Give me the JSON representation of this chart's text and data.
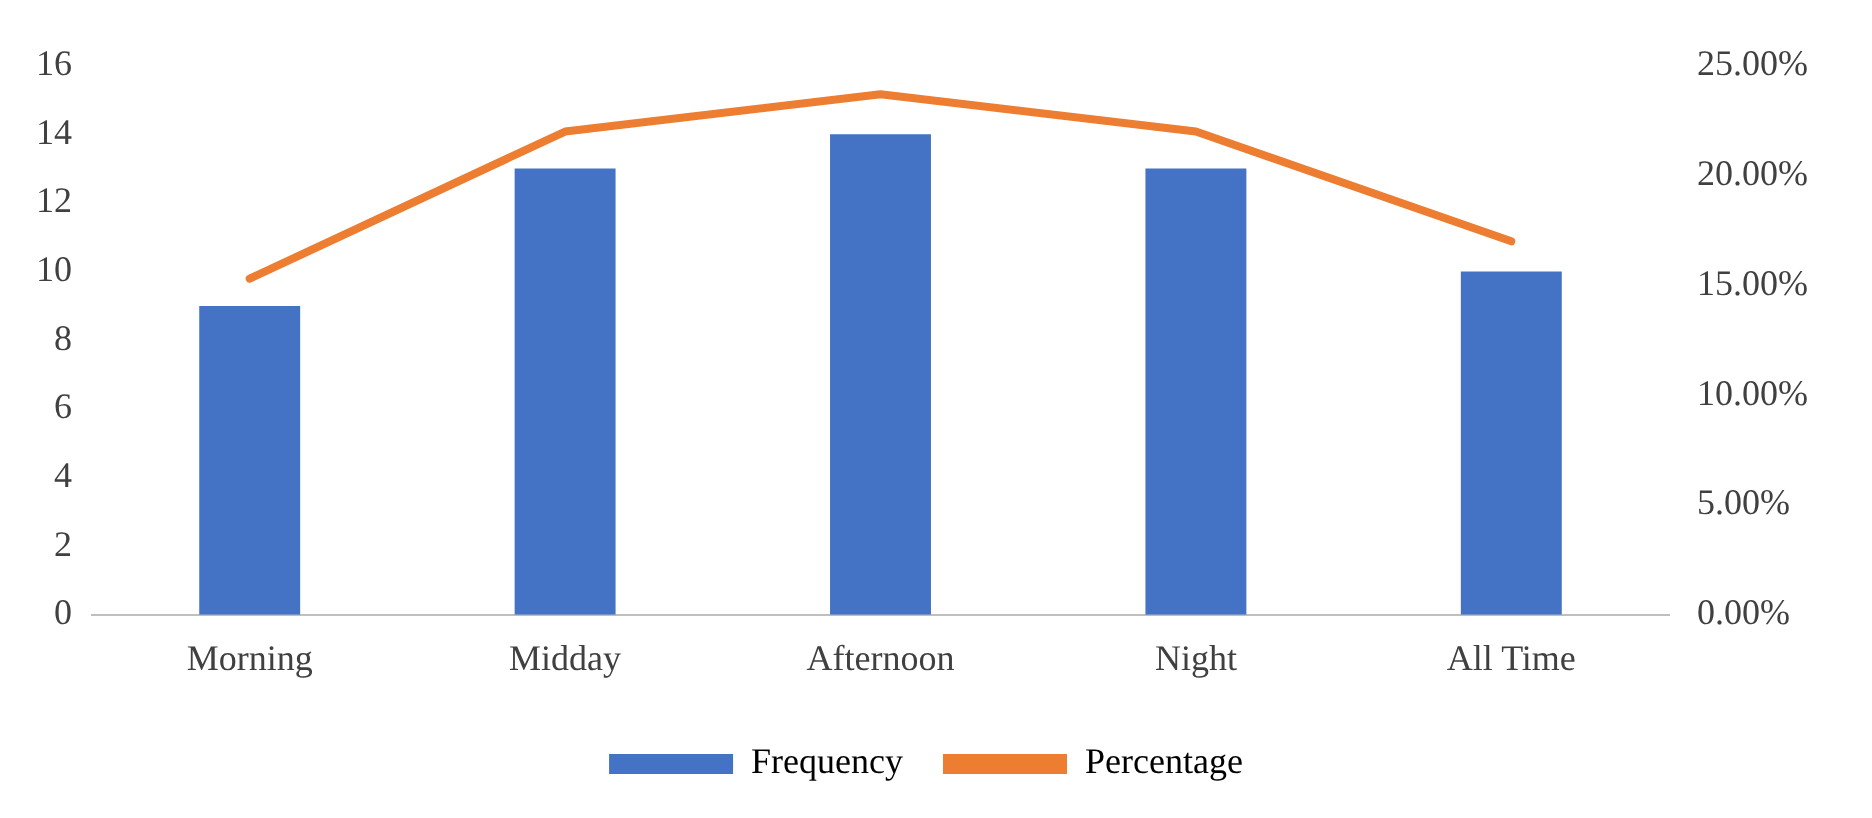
{
  "chart_data": {
    "type": "bar",
    "categories": [
      "Morning",
      "Midday",
      "Afternoon",
      "Night",
      "All Time"
    ],
    "series": [
      {
        "name": "Frequency",
        "color": "#4472c4",
        "values": [
          9,
          13,
          14,
          13,
          10
        ]
      },
      {
        "name": "Percentage",
        "type": "line",
        "color": "#ed7d31",
        "axis": "y2",
        "values": [
          15.3,
          22,
          23.7,
          22,
          17
        ]
      }
    ],
    "ylim": [
      0,
      16
    ],
    "yticks": [
      0,
      2,
      4,
      6,
      8,
      10,
      12,
      14,
      16
    ],
    "y2lim": [
      0,
      25
    ],
    "y2ticks": [
      {
        "value": 0,
        "label": "0.00%"
      },
      {
        "value": 5,
        "label": "5.00%"
      },
      {
        "value": 10,
        "label": "10.00%"
      },
      {
        "value": 15,
        "label": "15.00%"
      },
      {
        "value": 20,
        "label": "20.00%"
      },
      {
        "value": 25,
        "label": "25.00%"
      }
    ],
    "grid": false,
    "legend": "bottom",
    "marker": "none"
  }
}
